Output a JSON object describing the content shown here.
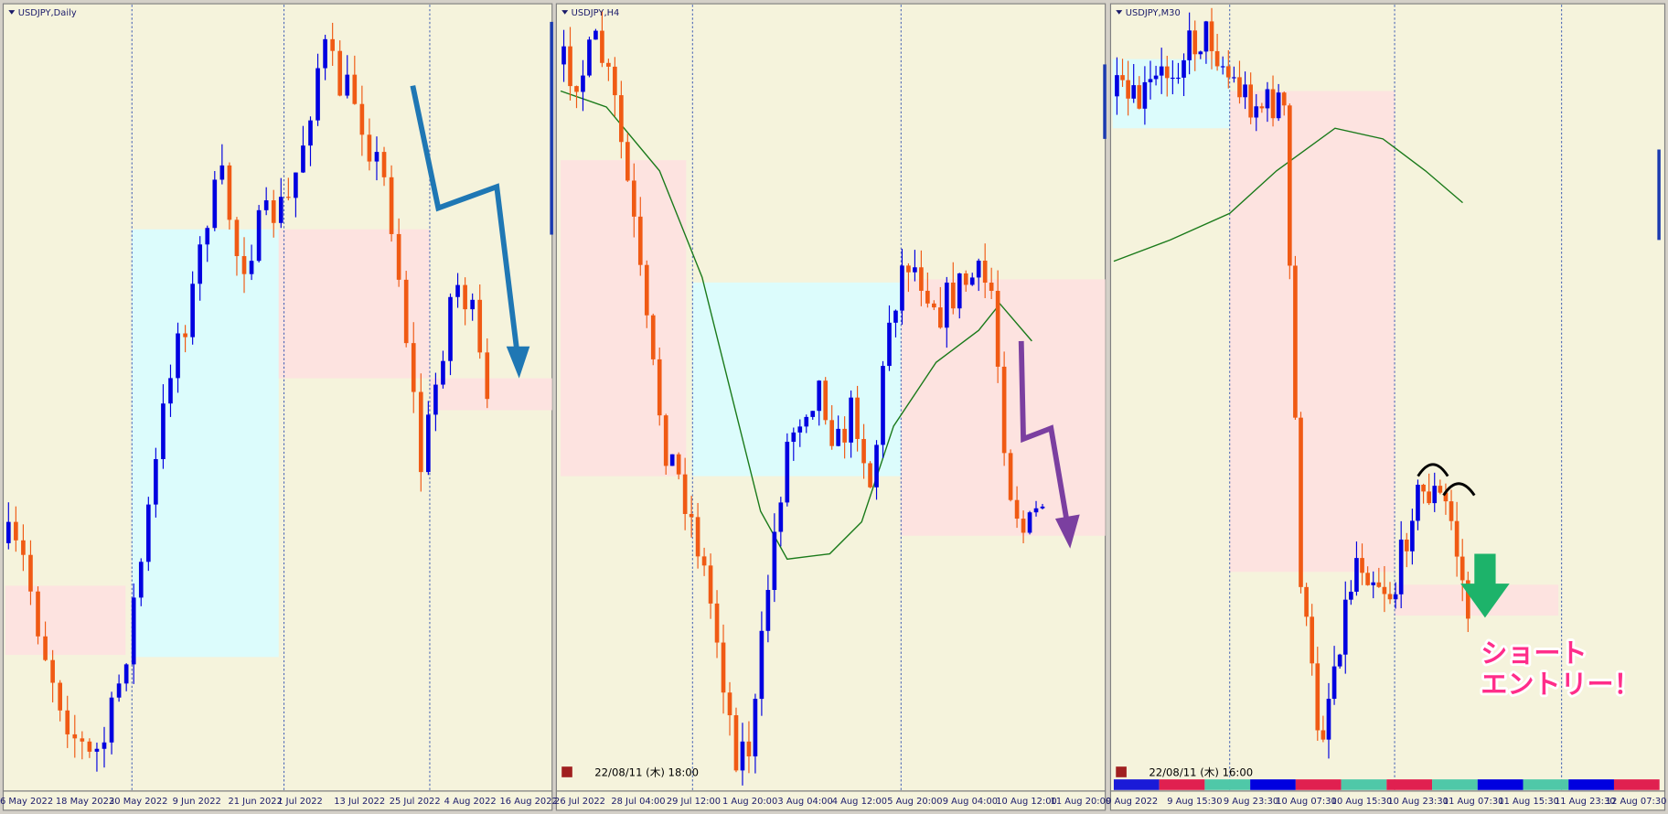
{
  "panels": [
    {
      "title": "USDJPY,Daily",
      "x_labels": [
        "6 May 2022",
        "18 May 2022",
        "30 May 2022",
        "9 Jun 2022",
        "21 Jun 2022",
        "1 Jul 2022",
        "13 Jul 2022",
        "25 Jul 2022",
        "4 Aug 2022",
        "16 Aug 2022"
      ]
    },
    {
      "title": "USDJPY,H4",
      "x_labels": [
        "26 Jul 2022",
        "28 Jul 04:00",
        "29 Jul 12:00",
        "1 Aug 20:00",
        "3 Aug 04:00",
        "4 Aug 12:00",
        "5 Aug 20:00",
        "9 Aug 04:00",
        "10 Aug 12:00",
        "11 Aug 20:00"
      ],
      "timestamp": "22/08/11 (木) 18:00"
    },
    {
      "title": "USDJPY,M30",
      "x_labels": [
        "9 Aug 2022",
        "9 Aug 15:30",
        "9 Aug 23:30",
        "10 Aug 07:30",
        "10 Aug 15:30",
        "10 Aug 23:30",
        "11 Aug 07:30",
        "11 Aug 15:30",
        "11 Aug 23:30",
        "12 Aug 07:30"
      ],
      "timestamp": "22/08/11 (木) 16:00",
      "annotation": [
        "ショート",
        "エントリー！"
      ]
    }
  ]
}
